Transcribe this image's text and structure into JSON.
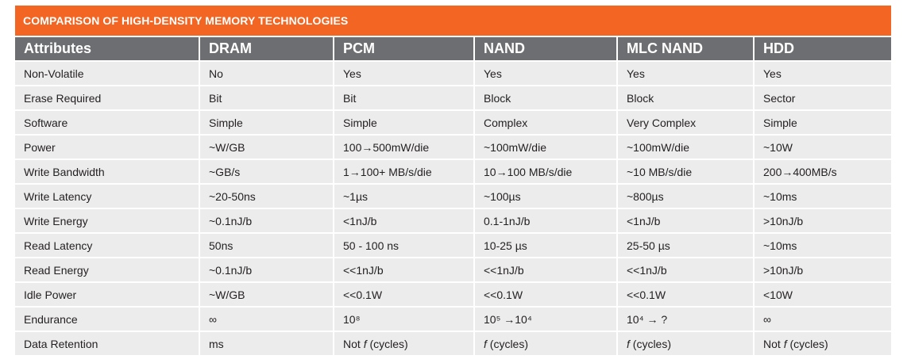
{
  "title": "COMPARISON OF HIGH-DENSITY MEMORY TECHNOLOGIES",
  "table": {
    "headers": [
      "Attributes",
      "DRAM",
      "PCM",
      "NAND",
      "MLC NAND",
      "HDD"
    ],
    "rows": [
      [
        "Non-Volatile",
        "No",
        "Yes",
        "Yes",
        "Yes",
        "Yes"
      ],
      [
        "Erase Required",
        "Bit",
        "Bit",
        "Block",
        "Block",
        "Sector"
      ],
      [
        "Software",
        "Simple",
        "Simple",
        "Complex",
        "Very Complex",
        "Simple"
      ],
      [
        "Power",
        "~W/GB",
        "100→500mW/die",
        "~100mW/die",
        "~100mW/die",
        "~10W"
      ],
      [
        "Write Bandwidth",
        "~GB/s",
        "1→100+ MB/s/die",
        "10→100 MB/s/die",
        "~10 MB/s/die",
        "200→400MB/s"
      ],
      [
        "Write Latency",
        "~20-50ns",
        "~1µs",
        "~100µs",
        "~800µs",
        "~10ms"
      ],
      [
        "Write Energy",
        "~0.1nJ/b",
        "<1nJ/b",
        "0.1-1nJ/b",
        "<1nJ/b",
        ">10nJ/b"
      ],
      [
        "Read Latency",
        "50ns",
        "50 - 100 ns",
        "10-25 µs",
        "25-50 µs",
        "~10ms"
      ],
      [
        "Read Energy",
        "~0.1nJ/b",
        "<<1nJ/b",
        "<<1nJ/b",
        "<<1nJ/b",
        ">10nJ/b"
      ],
      [
        "Idle Power",
        "~W/GB",
        "<<0.1W",
        "<<0.1W",
        "<<0.1W",
        "<10W"
      ],
      [
        "Endurance",
        "∞",
        "10⁸",
        "10⁵ →10⁴",
        "10⁴ → ?",
        "∞"
      ],
      [
        "Data Retention",
        "ms",
        "Not f (cycles)",
        "f (cycles)",
        "f (cycles)",
        "Not f (cycles)"
      ]
    ]
  }
}
